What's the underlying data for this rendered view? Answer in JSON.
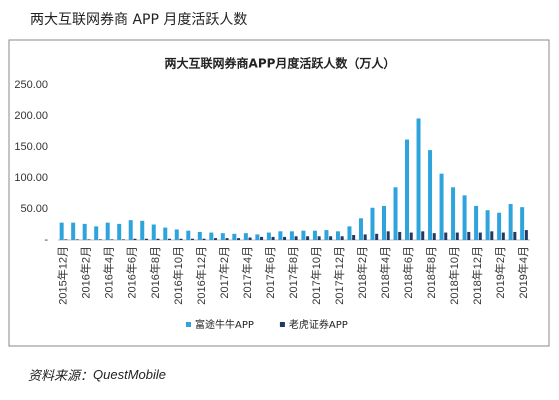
{
  "heading": "两大互联网券商 APP 月度活跃人数",
  "source": {
    "label": "资料来源：",
    "name": "QuestMobile"
  },
  "chart_data": {
    "type": "bar",
    "title": "两大互联网券商APP月度活跃人数（万人）",
    "categories": [
      "2015年12月",
      null,
      "2016年2月",
      null,
      "2016年4月",
      null,
      "2016年6月",
      null,
      "2016年8月",
      null,
      "2016年10月",
      null,
      "2016年12月",
      null,
      "2017年2月",
      null,
      "2017年4月",
      null,
      "2017年6月",
      null,
      "2017年8月",
      null,
      "2017年10月",
      null,
      "2017年12月",
      null,
      "2018年2月",
      null,
      "2018年4月",
      null,
      "2018年6月",
      null,
      "2018年8月",
      null,
      "2018年10月",
      null,
      "2018年12月",
      null,
      "2019年2月",
      null,
      "2019年4月"
    ],
    "series": [
      {
        "name": "富途牛牛APP",
        "color": "#2ea3dc",
        "values": [
          28,
          28,
          26,
          22,
          28,
          26,
          32,
          31,
          25,
          20,
          17,
          15,
          13,
          12,
          11,
          10,
          11,
          9,
          12,
          14,
          14,
          15,
          15,
          16,
          14,
          22,
          35,
          52,
          55,
          85,
          162,
          196,
          145,
          107,
          85,
          72,
          55,
          48,
          44,
          58,
          53
        ]
      },
      {
        "name": "老虎证券APP",
        "color": "#1f3864",
        "values": [
          1,
          1,
          1,
          1,
          1,
          1,
          2,
          2,
          2,
          2,
          2,
          2,
          2,
          3,
          3,
          3,
          4,
          5,
          5,
          5,
          6,
          6,
          6,
          6,
          6,
          8,
          9,
          10,
          14,
          13,
          12,
          14,
          11,
          12,
          12,
          13,
          12,
          14,
          12,
          13,
          16
        ]
      }
    ],
    "ylim": [
      0,
      250
    ],
    "yticks": [
      {
        "value": 0,
        "label": "-"
      },
      {
        "value": 50,
        "label": "50.00"
      },
      {
        "value": 100,
        "label": "100.00"
      },
      {
        "value": 150,
        "label": "150.00"
      },
      {
        "value": 200,
        "label": "200.00"
      },
      {
        "value": 250,
        "label": "250.00"
      }
    ],
    "grid": false,
    "legend": "bottom"
  }
}
